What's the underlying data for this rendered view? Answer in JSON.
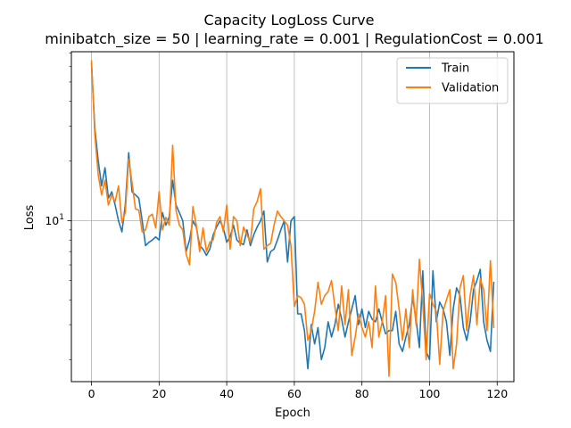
{
  "chart_data": {
    "type": "line",
    "title": "Capacity LogLoss Curve",
    "subtitle": "minibatch_size = 50 | learning_rate = 0.001 | RegulationCost = 0.001",
    "xlabel": "Epoch",
    "ylabel": "Loss",
    "xlim": [
      -5.95,
      124.95
    ],
    "ylim": [
      1.55,
      71
    ],
    "yscale": "log",
    "x_ticks": [
      0,
      20,
      40,
      60,
      80,
      100,
      120
    ],
    "x_tick_labels": [
      "0",
      "20",
      "40",
      "60",
      "80",
      "100",
      "120"
    ],
    "y_ticks": [
      10
    ],
    "y_tick_labels": [
      "10^1"
    ],
    "grid": true,
    "legend": "top-right",
    "colors": {
      "Train": "#1f77b4",
      "Validation": "#ff7f0e",
      "grid": "#b0b0b0"
    },
    "series": [
      {
        "name": "Train",
        "x": [
          0,
          1,
          2,
          3,
          4,
          5,
          6,
          7,
          8,
          9,
          10,
          11,
          12,
          13,
          14,
          15,
          16,
          17,
          18,
          19,
          20,
          21,
          22,
          23,
          24,
          25,
          26,
          27,
          28,
          29,
          30,
          31,
          32,
          33,
          34,
          35,
          36,
          37,
          38,
          39,
          40,
          41,
          42,
          43,
          44,
          45,
          46,
          47,
          48,
          49,
          50,
          51,
          52,
          53,
          54,
          55,
          56,
          57,
          58,
          59,
          60,
          61,
          62,
          63,
          64,
          65,
          66,
          67,
          68,
          69,
          70,
          71,
          72,
          73,
          74,
          75,
          76,
          77,
          78,
          79,
          80,
          81,
          82,
          83,
          84,
          85,
          86,
          87,
          88,
          89,
          90,
          91,
          92,
          93,
          94,
          95,
          96,
          97,
          98,
          99,
          100,
          101,
          102,
          103,
          104,
          105,
          106,
          107,
          108,
          109,
          110,
          111,
          112,
          113,
          114,
          115,
          116,
          117,
          118,
          119
        ],
        "values": [
          62,
          29,
          20,
          15,
          18.5,
          13,
          14,
          12,
          10,
          8.8,
          12,
          22,
          14,
          13.5,
          13,
          10,
          7.5,
          7.8,
          8,
          8.3,
          8,
          11,
          9.5,
          10.5,
          16,
          12,
          11,
          10,
          7,
          8,
          10,
          9.3,
          7.5,
          7.2,
          6.7,
          7.2,
          8.5,
          9.3,
          10,
          9.2,
          7.8,
          8.3,
          9.5,
          8,
          7.7,
          7.6,
          9,
          7.5,
          8.5,
          9.3,
          10,
          11.2,
          6.2,
          7,
          7.2,
          8,
          9,
          10,
          6.2,
          10,
          10.5,
          3.4,
          3.4,
          2.8,
          1.8,
          3,
          2.4,
          2.9,
          2,
          2.3,
          3.1,
          2.6,
          3,
          3.8,
          3.2,
          2.6,
          3.1,
          3.6,
          4.2,
          3,
          3.6,
          2.9,
          3.5,
          3.2,
          3.1,
          3.6,
          3.1,
          2.7,
          2.8,
          2.8,
          3.5,
          2.4,
          2.2,
          2.6,
          3,
          4.1,
          3.2,
          2.3,
          5.6,
          2.2,
          2,
          5.6,
          3.1,
          3.9,
          3.6,
          3.1,
          2.1,
          3.6,
          4.6,
          4.2,
          2.9,
          2.5,
          3.1,
          4.5,
          5,
          5.7,
          3.1,
          2.5,
          2.2,
          4.9
        ]
      },
      {
        "name": "Validation",
        "x": [
          0,
          1,
          2,
          3,
          4,
          5,
          6,
          7,
          8,
          9,
          10,
          11,
          12,
          13,
          14,
          15,
          16,
          17,
          18,
          19,
          20,
          21,
          22,
          23,
          24,
          25,
          26,
          27,
          28,
          29,
          30,
          31,
          32,
          33,
          34,
          35,
          36,
          37,
          38,
          39,
          40,
          41,
          42,
          43,
          44,
          45,
          46,
          47,
          48,
          49,
          50,
          51,
          52,
          53,
          54,
          55,
          56,
          57,
          58,
          59,
          60,
          61,
          62,
          63,
          64,
          65,
          66,
          67,
          68,
          69,
          70,
          71,
          72,
          73,
          74,
          75,
          76,
          77,
          78,
          79,
          80,
          81,
          82,
          83,
          84,
          85,
          86,
          87,
          88,
          89,
          90,
          91,
          92,
          93,
          94,
          95,
          96,
          97,
          98,
          99,
          100,
          101,
          102,
          103,
          104,
          105,
          106,
          107,
          108,
          109,
          110,
          111,
          112,
          113,
          114,
          115,
          116,
          117,
          118,
          119
        ],
        "values": [
          64,
          27,
          17,
          13.5,
          16,
          12,
          13.5,
          12.5,
          15,
          9.8,
          11,
          20.5,
          15.5,
          11.5,
          11.3,
          8.8,
          9,
          10.5,
          10.8,
          9.2,
          14,
          9,
          10.4,
          9.5,
          24,
          11.3,
          9.5,
          9,
          6.8,
          6,
          11.8,
          9.5,
          7,
          9.2,
          7,
          7.8,
          8,
          9.8,
          10.5,
          8.8,
          12,
          7.2,
          10.5,
          10,
          7.5,
          9.3,
          8.5,
          7.8,
          11.5,
          12.5,
          14.5,
          7.2,
          7.5,
          7.7,
          9.5,
          11.2,
          10.5,
          10,
          9.5,
          7.5,
          3.7,
          4.2,
          4.1,
          3.8,
          2.5,
          2.8,
          3.5,
          4.9,
          3.8,
          4.2,
          4.4,
          5,
          3.7,
          2.8,
          4.7,
          3,
          4.5,
          2.1,
          2.6,
          3.4,
          2.9,
          2.6,
          3.1,
          2.3,
          4.7,
          2.6,
          3.1,
          4.2,
          1.65,
          5.4,
          4.9,
          3.6,
          2.5,
          3.6,
          2.3,
          4.5,
          3,
          6.4,
          3.8,
          2,
          4.3,
          3.8,
          3.5,
          1.9,
          3.5,
          4,
          4.5,
          1.8,
          2.4,
          4.6,
          5.3,
          2.8,
          4.2,
          5.3,
          3,
          5.1,
          4.5,
          2.8,
          6.3,
          2.9
        ]
      }
    ]
  }
}
